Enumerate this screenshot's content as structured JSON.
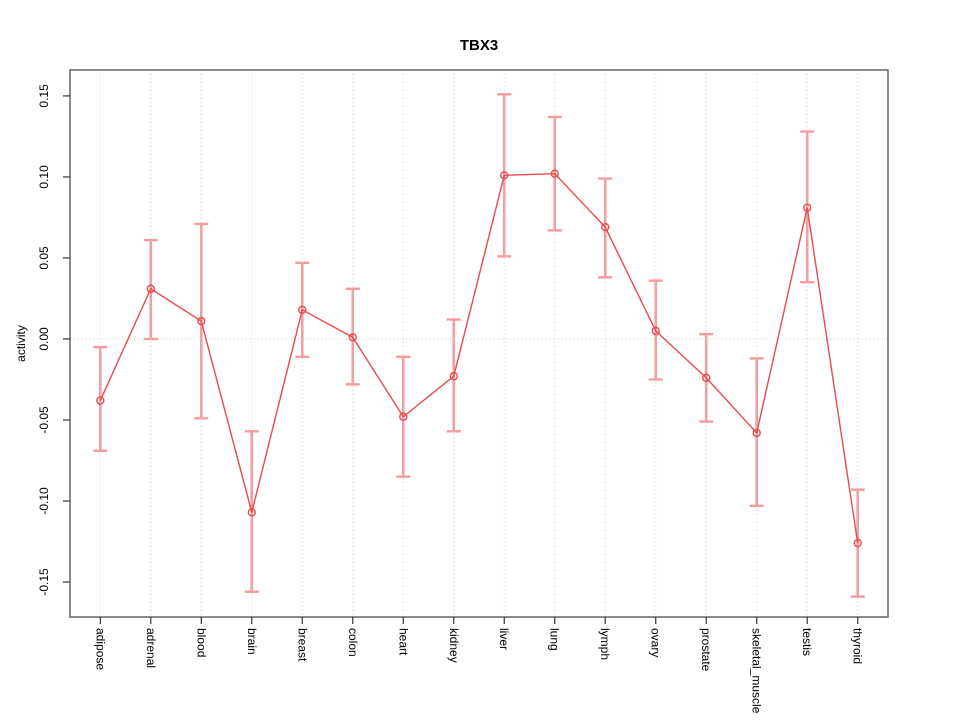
{
  "chart_data": {
    "type": "line",
    "title": "TBX3",
    "xlabel": "",
    "ylabel": "activity",
    "categories": [
      "adipose",
      "adrenal",
      "blood",
      "brain",
      "breast",
      "colon",
      "heart",
      "kidney",
      "liver",
      "lung",
      "lymph",
      "ovary",
      "prostate",
      "skeletal_muscle",
      "testis",
      "thyroid"
    ],
    "series": [
      {
        "name": "TBX3 activity",
        "values": [
          -0.038,
          0.031,
          0.011,
          -0.107,
          0.018,
          0.001,
          -0.048,
          -0.023,
          0.101,
          0.102,
          0.069,
          0.005,
          -0.024,
          -0.058,
          0.081,
          -0.126
        ],
        "ci_low": [
          -0.069,
          0.0,
          -0.049,
          -0.156,
          -0.011,
          -0.028,
          -0.085,
          -0.057,
          0.051,
          0.067,
          0.038,
          -0.025,
          -0.051,
          -0.103,
          0.035,
          -0.159
        ],
        "ci_high": [
          -0.005,
          0.061,
          0.071,
          -0.057,
          0.047,
          0.031,
          -0.011,
          0.012,
          0.151,
          0.137,
          0.099,
          0.036,
          0.003,
          -0.012,
          0.128,
          -0.093
        ]
      }
    ],
    "ylim": [
      -0.1716,
      0.166
    ],
    "yticks": [
      -0.15,
      -0.1,
      -0.05,
      0,
      0.05,
      0.1,
      0.15
    ],
    "ytick_labels": [
      "-0.15",
      "-0.10",
      "-0.05",
      "0.00",
      "0.05",
      "0.10",
      "0.15"
    ],
    "grid": {
      "vertical": "dotted line at every category",
      "horizontal": "dotted line at y=0 only"
    },
    "legend": "none",
    "point_style": "open-circle with error bars",
    "colors": {
      "line": "#E94A4A",
      "point": "#E94A4A",
      "error_bar": "#F59B9B",
      "gridline": "#C9C9C9",
      "box_border": "#6E6E6E",
      "tick": "#333333",
      "text": "#000000",
      "background": "#FFFFFF"
    }
  }
}
